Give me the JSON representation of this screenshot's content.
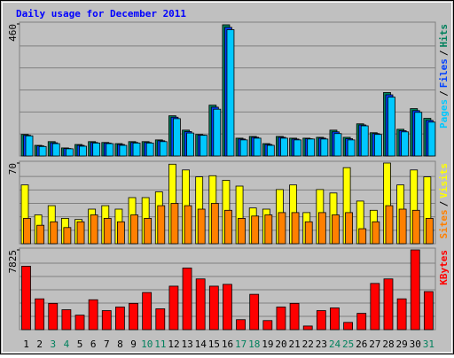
{
  "chart_data": [
    {
      "type": "bar",
      "title": "Daily usage for December 2011",
      "ylim": [
        0,
        460
      ],
      "yticks": [
        460
      ],
      "legend_separator": "/",
      "series": [
        {
          "name": "Hits",
          "color": "#00805c",
          "values": [
            75,
            37,
            50,
            28,
            40,
            50,
            47,
            43,
            50,
            50,
            56,
            140,
            90,
            75,
            177,
            457,
            62,
            68,
            43,
            68,
            62,
            62,
            65,
            90,
            65,
            112,
            81,
            221,
            93,
            165,
            131
          ]
        },
        {
          "name": "Files",
          "color": "#0040ff",
          "values": [
            72,
            35,
            46,
            26,
            37,
            47,
            45,
            40,
            47,
            47,
            53,
            135,
            85,
            73,
            170,
            448,
            59,
            65,
            40,
            65,
            59,
            60,
            62,
            84,
            60,
            108,
            78,
            213,
            88,
            158,
            124
          ]
        },
        {
          "name": "Pages",
          "color": "#00c8ff",
          "values": [
            70,
            33,
            43,
            25,
            34,
            45,
            43,
            37,
            45,
            45,
            50,
            130,
            80,
            72,
            163,
            440,
            56,
            62,
            37,
            62,
            56,
            59,
            59,
            78,
            56,
            105,
            75,
            205,
            84,
            152,
            118
          ]
        }
      ]
    },
    {
      "type": "bar",
      "ylim": [
        0,
        70
      ],
      "yticks": [
        70
      ],
      "legend_separator": "/",
      "series": [
        {
          "name": "Visits",
          "color": "#ffff00",
          "values": [
            51,
            25,
            33,
            22,
            21,
            30,
            33,
            30,
            40,
            40,
            45,
            69,
            64,
            58,
            59,
            55,
            50,
            31,
            30,
            47,
            51,
            27,
            47,
            44,
            66,
            37,
            29,
            70,
            51,
            64,
            58
          ]
        },
        {
          "name": "Sites",
          "color": "#ff8000",
          "values": [
            22,
            16,
            19,
            14,
            19,
            25,
            22,
            19,
            25,
            22,
            33,
            35,
            33,
            30,
            35,
            29,
            22,
            24,
            25,
            27,
            27,
            19,
            27,
            25,
            27,
            13,
            19,
            33,
            30,
            29,
            22
          ]
        }
      ]
    },
    {
      "type": "bar",
      "ylim": [
        0,
        7825
      ],
      "yticks": [
        7825
      ],
      "categories": [
        "1",
        "2",
        "3",
        "4",
        "5",
        "6",
        "7",
        "8",
        "9",
        "10",
        "11",
        "12",
        "13",
        "14",
        "15",
        "16",
        "17",
        "18",
        "19",
        "20",
        "21",
        "22",
        "23",
        "24",
        "25",
        "26",
        "27",
        "28",
        "29",
        "30",
        "31"
      ],
      "label_colors": [
        "#000000",
        "#000000",
        "#00805c",
        "#00805c",
        "#000000",
        "#000000",
        "#000000",
        "#000000",
        "#000000",
        "#00805c",
        "#00805c",
        "#000000",
        "#000000",
        "#000000",
        "#000000",
        "#000000",
        "#00805c",
        "#00805c",
        "#000000",
        "#000000",
        "#000000",
        "#000000",
        "#000000",
        "#00805c",
        "#00805c",
        "#000000",
        "#000000",
        "#000000",
        "#000000",
        "#000000",
        "#00805c"
      ],
      "series": [
        {
          "name": "KBytes",
          "color": "#ff0000",
          "values": [
            6223,
            3023,
            2578,
            1956,
            1422,
            2934,
            1867,
            2222,
            2578,
            3645,
            2045,
            4267,
            6045,
            4978,
            4267,
            4445,
            978,
            3467,
            889,
            2222,
            2578,
            356,
            1867,
            2134,
            711,
            1600,
            4534,
            4978,
            3023,
            7825,
            3734
          ]
        }
      ]
    }
  ]
}
